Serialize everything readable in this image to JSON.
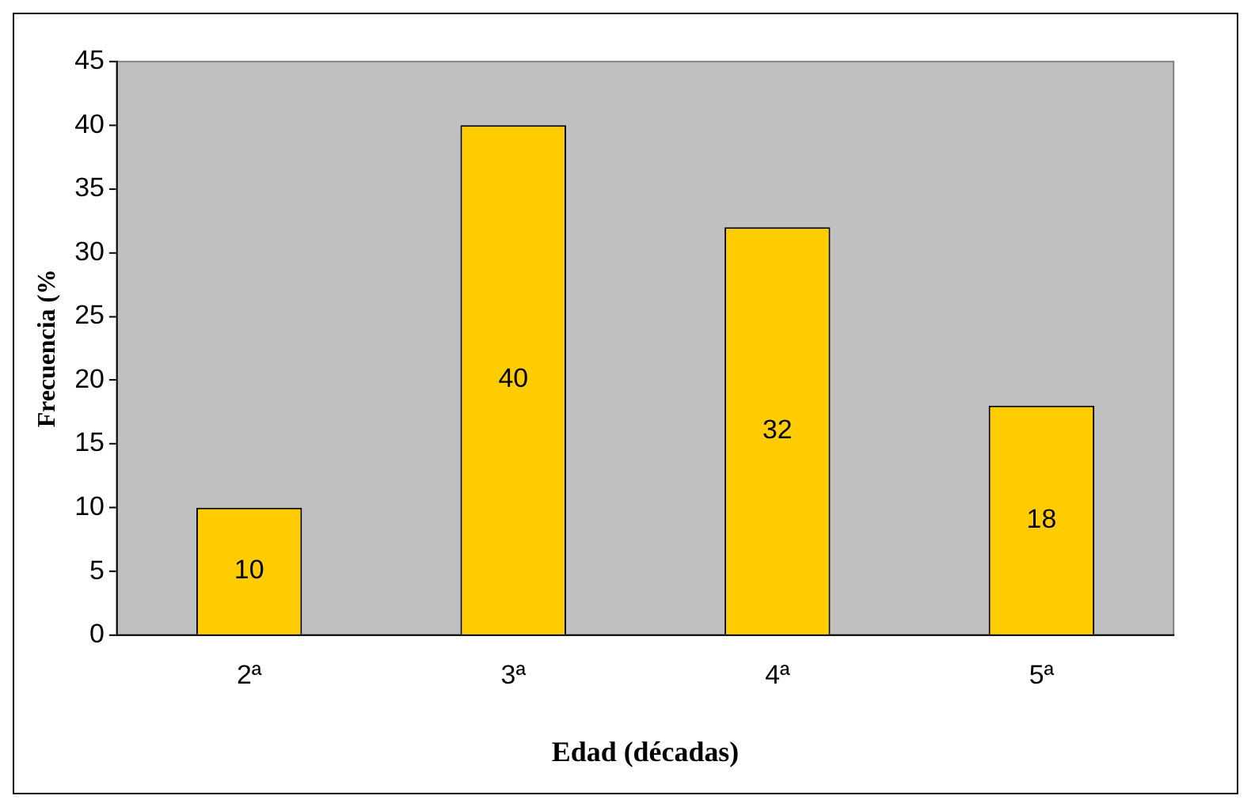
{
  "chart_data": {
    "type": "bar",
    "xlabel": "Edad (décadas)",
    "ylabel": "Frecuencia (%",
    "categories": [
      "2ª",
      "3ª",
      "4ª",
      "5ª"
    ],
    "values": [
      10,
      40,
      32,
      18
    ],
    "color": "#ffcc00",
    "ylim": [
      0,
      45
    ],
    "yticks": [
      0,
      5,
      10,
      15,
      20,
      25,
      30,
      35,
      40,
      45
    ],
    "grid": false,
    "legend": false,
    "data_labels": true
  }
}
